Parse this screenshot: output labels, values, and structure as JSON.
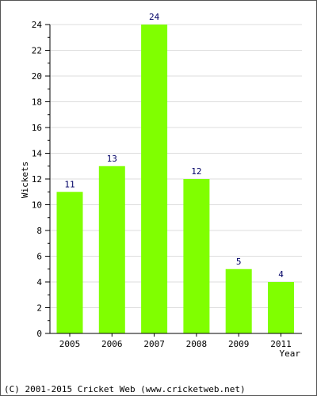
{
  "chart_data": {
    "type": "bar",
    "categories": [
      "2005",
      "2006",
      "2007",
      "2008",
      "2009",
      "2011"
    ],
    "values": [
      11,
      13,
      24,
      12,
      5,
      4
    ],
    "data_labels": [
      "11",
      "13",
      "24",
      "12",
      "5",
      "4"
    ],
    "title": "",
    "xlabel": "Year",
    "ylabel": "Wickets",
    "ylim": [
      0,
      24
    ],
    "yticks": [
      0,
      2,
      4,
      6,
      8,
      10,
      12,
      14,
      16,
      18,
      20,
      22,
      24
    ],
    "grid": true,
    "bar_color": "#80ff00",
    "label_color": "#000066"
  },
  "footer": {
    "copyright": "(C) 2001-2015 Cricket Web (www.cricketweb.net)"
  }
}
